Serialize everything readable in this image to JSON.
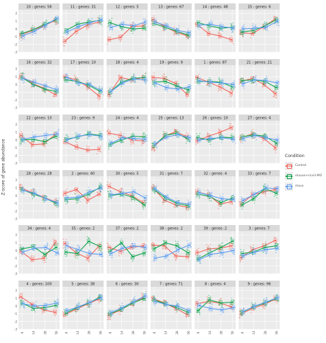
{
  "chart_data": {
    "type": "line",
    "ylabel": "Z-score of gene abundance",
    "x_ticks": [
      "0",
      "14",
      "28",
      "56"
    ],
    "y_ticks": [
      "-3",
      "-2",
      "-1",
      "0",
      "1",
      "2"
    ],
    "ylim": [
      -3,
      2.5
    ],
    "legend": {
      "title": "Condition",
      "placement": "right",
      "entries": [
        {
          "name": "Control",
          "color": "#f0655b"
        },
        {
          "name": "mouse+rice3-MO",
          "color": "#0aa34a"
        },
        {
          "name": "mous",
          "color": "#5b9cf0"
        }
      ]
    },
    "panels": [
      {
        "label": "10 : genes: 56",
        "series": [
          [
            -0.8,
            -0.2,
            0.4,
            1.1
          ],
          [
            -0.6,
            -0.1,
            0.6,
            1.2
          ],
          [
            -0.9,
            -0.3,
            0.5,
            1.4
          ]
        ]
      },
      {
        "label": "11 : genes: 31",
        "series": [
          [
            -1.6,
            -0.3,
            0.5,
            0.9
          ],
          [
            -0.2,
            0.6,
            0.9,
            1.1
          ],
          [
            -0.4,
            0.3,
            0.8,
            1.2
          ]
        ]
      },
      {
        "label": "12 : genes: 5",
        "series": [
          [
            -1.4,
            -1.1,
            0.3,
            0.4
          ],
          [
            0.8,
            0.3,
            0.0,
            0.1
          ],
          [
            0.2,
            0.6,
            0.4,
            0.9
          ]
        ]
      },
      {
        "label": "13 : genes: 67",
        "series": [
          [
            1.2,
            0.3,
            -0.4,
            -0.9
          ],
          [
            0.7,
            0.2,
            -0.3,
            -0.8
          ],
          [
            0.9,
            0.4,
            -0.2,
            -0.5
          ]
        ]
      },
      {
        "label": "14 : genes: 48",
        "series": [
          [
            0.6,
            -0.6,
            -0.9,
            -1.4
          ],
          [
            0.8,
            0.4,
            0.1,
            0.2
          ],
          [
            0.5,
            0.6,
            0.3,
            0.1
          ]
        ]
      },
      {
        "label": "15 : genes: 6",
        "series": [
          [
            -0.5,
            -0.6,
            0.3,
            1.3
          ],
          [
            -0.4,
            -0.2,
            0.4,
            1.2
          ],
          [
            0.0,
            0.1,
            0.2,
            1.0
          ]
        ]
      },
      {
        "label": "16 : genes: 32",
        "series": [
          [
            1.1,
            0.2,
            -0.5,
            -1.3
          ],
          [
            0.9,
            0.0,
            -0.6,
            -0.9
          ],
          [
            0.8,
            0.3,
            -0.2,
            -0.7
          ]
        ]
      },
      {
        "label": "17 : genes: 10",
        "series": [
          [
            1.0,
            0.6,
            -0.3,
            -1.5
          ],
          [
            0.6,
            0.4,
            -0.1,
            -0.9
          ],
          [
            0.9,
            0.2,
            0.0,
            -0.8
          ]
        ]
      },
      {
        "label": "18 : genes: 4",
        "series": [
          [
            -1.3,
            0.9,
            0.6,
            0.9
          ],
          [
            -1.0,
            0.3,
            0.8,
            0.9
          ],
          [
            -0.9,
            0.2,
            0.7,
            0.6
          ]
        ]
      },
      {
        "label": "19 : genes: 9",
        "series": [
          [
            0.9,
            0.8,
            0.1,
            -1.3
          ],
          [
            0.3,
            0.4,
            -0.2,
            -0.7
          ],
          [
            0.2,
            -0.4,
            -0.6,
            -0.3
          ]
        ]
      },
      {
        "label": "1 : genes: 87",
        "series": [
          [
            0.9,
            0.3,
            -0.3,
            -1.1
          ],
          [
            0.4,
            0.4,
            0.3,
            -0.3
          ],
          [
            0.5,
            0.3,
            0.2,
            0.0
          ]
        ]
      },
      {
        "label": "21 : genes: 21",
        "series": [
          [
            0.4,
            0.8,
            0.0,
            -1.2
          ],
          [
            0.5,
            0.6,
            0.4,
            -0.4
          ],
          [
            0.1,
            0.6,
            0.5,
            0.2
          ]
        ]
      },
      {
        "label": "22 : genes: 10",
        "series": [
          [
            0.6,
            -0.6,
            -0.5,
            0.7
          ],
          [
            0.0,
            0.1,
            -0.2,
            0.5
          ],
          [
            0.1,
            0.4,
            0.6,
            0.8
          ]
        ]
      },
      {
        "label": "23 : genes: 9",
        "series": [
          [
            -0.2,
            -0.9,
            -1.3,
            -1.2
          ],
          [
            0.1,
            0.4,
            0.8,
            0.6
          ],
          [
            0.0,
            0.5,
            0.7,
            0.5
          ]
        ]
      },
      {
        "label": "24 : genes: 4",
        "series": [
          [
            0.9,
            0.6,
            0.0,
            -0.1
          ],
          [
            -0.6,
            0.0,
            0.5,
            0.4
          ],
          [
            -0.4,
            0.3,
            0.2,
            0.1
          ]
        ]
      },
      {
        "label": "25 : genes: 13",
        "series": [
          [
            -1.0,
            0.5,
            1.1,
            0.4
          ],
          [
            -0.7,
            0.6,
            0.9,
            0.1
          ],
          [
            -0.5,
            0.4,
            0.7,
            0.3
          ]
        ]
      },
      {
        "label": "26 : genes: 10",
        "series": [
          [
            -0.1,
            0.5,
            1.0,
            1.6
          ],
          [
            0.3,
            0.0,
            0.4,
            0.3
          ],
          [
            0.0,
            0.2,
            0.3,
            0.1
          ]
        ]
      },
      {
        "label": "27 : genes: 4",
        "series": [
          [
            0.3,
            0.8,
            0.2,
            -1.0
          ],
          [
            0.4,
            0.7,
            0.5,
            -0.4
          ],
          [
            0.2,
            0.6,
            0.3,
            0.0
          ]
        ]
      },
      {
        "label": "28 : genes: 28",
        "series": [
          [
            1.0,
            0.4,
            -0.2,
            -0.8
          ],
          [
            0.8,
            0.2,
            -0.3,
            -1.0
          ],
          [
            0.7,
            0.3,
            -0.4,
            -0.9
          ]
        ]
      },
      {
        "label": "2 : genes: 40",
        "series": [
          [
            0.3,
            0.8,
            -0.6,
            0.2
          ],
          [
            -0.5,
            -0.4,
            0.2,
            1.1
          ],
          [
            -0.3,
            -0.2,
            0.5,
            1.0
          ]
        ]
      },
      {
        "label": "30 : genes: 5",
        "series": [
          [
            1.2,
            0.5,
            0.0,
            -0.9
          ],
          [
            0.0,
            0.2,
            -0.2,
            -1.2
          ],
          [
            0.1,
            0.3,
            0.5,
            -0.3
          ]
        ]
      },
      {
        "label": "31 : genes: 7",
        "series": [
          [
            1.0,
            -0.6,
            -1.2,
            -1.5
          ],
          [
            0.8,
            -0.3,
            -1.0,
            -1.3
          ],
          [
            0.9,
            -0.2,
            -0.9,
            -1.1
          ]
        ]
      },
      {
        "label": "32 : genes: 4",
        "series": [
          [
            0.5,
            0.1,
            -1.1,
            -0.8
          ],
          [
            0.2,
            -0.1,
            -0.9,
            -0.3
          ],
          [
            0.4,
            0.0,
            -0.4,
            -0.5
          ]
        ]
      },
      {
        "label": "33 : genes: 7",
        "series": [
          [
            -1.1,
            0.1,
            0.5,
            0.8
          ],
          [
            -1.2,
            -0.4,
            0.9,
            0.3
          ],
          [
            -0.6,
            0.2,
            1.0,
            0.9
          ]
        ]
      },
      {
        "label": "34 : genes: 4",
        "series": [
          [
            -0.1,
            -1.2,
            -1.0,
            1.0
          ],
          [
            0.2,
            0.5,
            -0.5,
            0.4
          ],
          [
            -0.2,
            0.3,
            0.4,
            -0.3
          ]
        ]
      },
      {
        "label": "35 : genes: 2",
        "series": [
          [
            0.9,
            -0.3,
            -1.0,
            0.6
          ],
          [
            -0.2,
            -0.4,
            1.2,
            0.5
          ],
          [
            0.6,
            0.1,
            -0.4,
            -0.5
          ]
        ]
      },
      {
        "label": "37 : genes: 2",
        "series": [
          [
            0.4,
            -0.1,
            0.4,
            0.6
          ],
          [
            -0.1,
            1.0,
            -0.8,
            -0.3
          ],
          [
            -0.4,
            0.3,
            0.6,
            0.4
          ]
        ]
      },
      {
        "label": "38 : genes: 2",
        "series": [
          [
            0.7,
            0.6,
            -0.7,
            -0.8
          ],
          [
            0.2,
            1.0,
            0.6,
            -0.3
          ],
          [
            -1.0,
            -0.7,
            0.1,
            0.7
          ]
        ]
      },
      {
        "label": "39 : genes: 2",
        "series": [
          [
            -0.3,
            0.2,
            0.3,
            0.6
          ],
          [
            -1.1,
            -0.3,
            0.4,
            1.2
          ],
          [
            -1.2,
            -0.5,
            -0.3,
            0.0
          ]
        ]
      },
      {
        "label": "3 : genes: 7",
        "series": [
          [
            -0.9,
            0.1,
            0.6,
            1.3
          ],
          [
            -0.4,
            -0.2,
            0.4,
            0.6
          ],
          [
            -0.7,
            -0.2,
            0.1,
            0.3
          ]
        ]
      },
      {
        "label": "4 : genes: 100",
        "series": [
          [
            1.2,
            0.2,
            -0.5,
            -0.8
          ],
          [
            0.4,
            -0.3,
            -0.2,
            0.1
          ],
          [
            0.3,
            0.0,
            0.1,
            0.4
          ]
        ]
      },
      {
        "label": "5 : genes: 38",
        "series": [
          [
            -1.1,
            -0.4,
            0.3,
            0.9
          ],
          [
            -0.9,
            -0.2,
            0.4,
            1.2
          ],
          [
            -0.6,
            -0.1,
            0.5,
            1.1
          ]
        ]
      },
      {
        "label": "6 : genes: 30",
        "series": [
          [
            -1.2,
            -0.5,
            0.3,
            1.1
          ],
          [
            -1.0,
            -0.4,
            0.4,
            1.0
          ],
          [
            -0.8,
            -0.2,
            0.6,
            1.3
          ]
        ]
      },
      {
        "label": "7 : genes: 71",
        "series": [
          [
            1.0,
            0.4,
            -0.3,
            -1.1
          ],
          [
            0.8,
            0.3,
            -0.2,
            -0.8
          ],
          [
            0.6,
            0.2,
            0.0,
            -0.6
          ]
        ]
      },
      {
        "label": "8 : genes: 4",
        "series": [
          [
            0.3,
            0.6,
            0.4,
            -0.1
          ],
          [
            -0.6,
            0.8,
            0.4,
            0.5
          ],
          [
            0.1,
            -0.3,
            -0.5,
            -0.2
          ]
        ]
      },
      {
        "label": "9 : genes: 96",
        "series": [
          [
            -1.0,
            -0.3,
            0.2,
            0.9
          ],
          [
            -0.8,
            -0.1,
            0.4,
            1.0
          ],
          [
            -0.7,
            0.0,
            0.5,
            1.1
          ]
        ]
      }
    ]
  }
}
